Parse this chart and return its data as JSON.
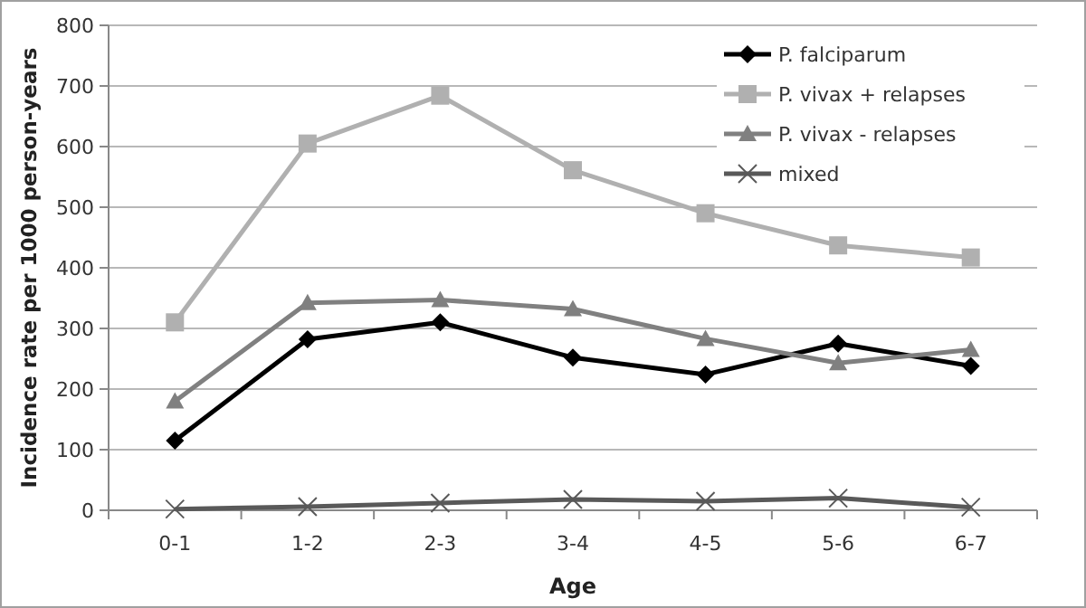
{
  "chart_data": {
    "type": "line",
    "xlabel": "Age",
    "ylabel": "Incidence rate per 1000 person-years",
    "categories": [
      "0-1",
      "1-2",
      "2-3",
      "3-4",
      "4-5",
      "5-6",
      "6-7"
    ],
    "series": [
      {
        "name": "P. falciparum",
        "color": "#000000",
        "marker": "diamond",
        "values": [
          115,
          282,
          310,
          252,
          224,
          275,
          238
        ]
      },
      {
        "name": "P. vivax + relapses",
        "color": "#b0b0b0",
        "marker": "square",
        "values": [
          310,
          605,
          684,
          561,
          490,
          437,
          417
        ]
      },
      {
        "name": "P. vivax - relapses",
        "color": "#808080",
        "marker": "triangle",
        "values": [
          180,
          342,
          347,
          332,
          283,
          243,
          265
        ]
      },
      {
        "name": "mixed",
        "color": "#595959",
        "marker": "cross",
        "values": [
          2,
          6,
          12,
          18,
          15,
          20,
          5
        ]
      }
    ],
    "ylim": [
      0,
      800
    ],
    "yticks": [
      0,
      100,
      200,
      300,
      400,
      500,
      600,
      700,
      800
    ],
    "grid": "y",
    "legend": "top right"
  }
}
